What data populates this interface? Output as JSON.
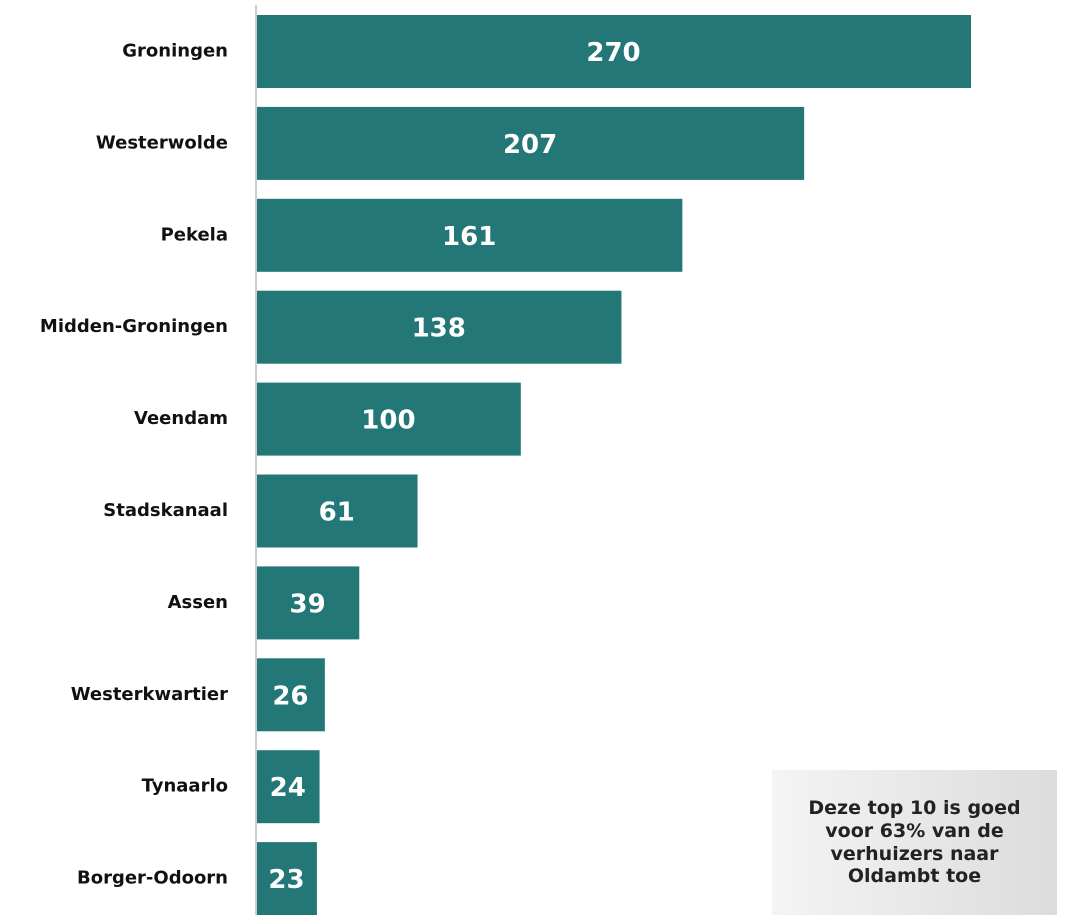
{
  "chart_data": {
    "type": "bar",
    "orientation": "horizontal",
    "categories": [
      "Groningen",
      "Westerwolde",
      "Pekela",
      "Midden-Groningen",
      "Veendam",
      "Stadskanaal",
      "Assen",
      "Westerkwartier",
      "Tynaarlo",
      "Borger-Odoorn"
    ],
    "values": [
      270,
      207,
      161,
      138,
      100,
      61,
      39,
      26,
      24,
      23
    ],
    "color": "#237777",
    "annotation": "Deze top 10 is goed voor 63% van de verhuizers naar Oldambt toe"
  }
}
